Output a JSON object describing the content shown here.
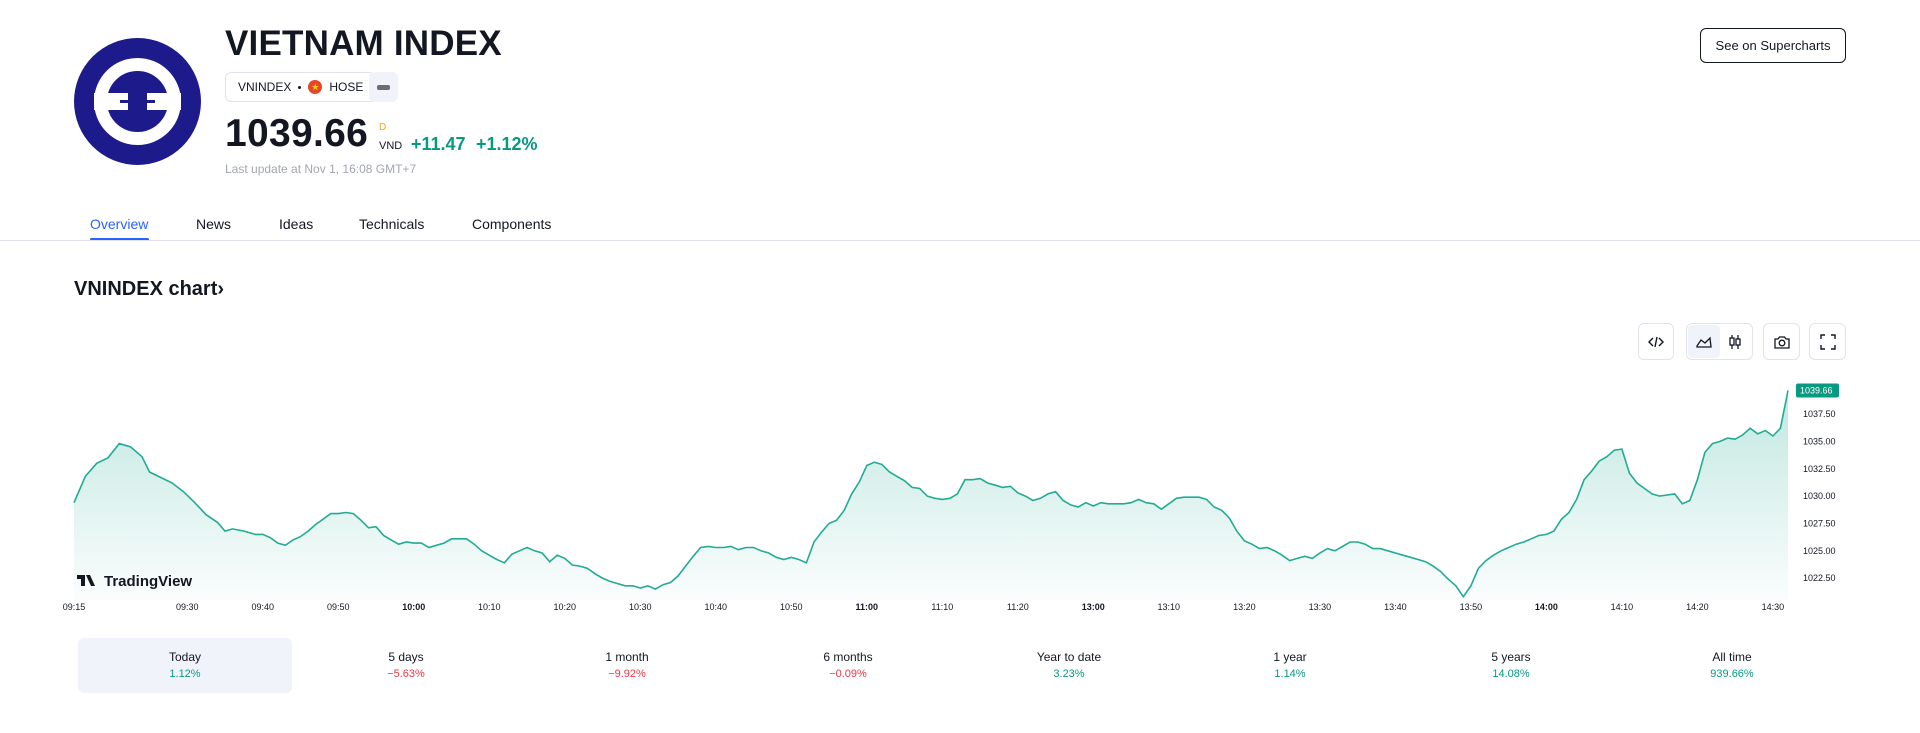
{
  "header": {
    "title": "VIETNAM INDEX",
    "symbol": "VNINDEX",
    "exchange": "HOSE",
    "price": "1039.66",
    "price_superscript": "D",
    "currency": "VND",
    "change": "+11.47",
    "change_percent": "+1.12%",
    "last_update": "Last update at Nov 1, 16:08 GMT+7",
    "supercharts_button": "See on Supercharts"
  },
  "tabs": [
    {
      "label": "Overview",
      "active": true
    },
    {
      "label": "News"
    },
    {
      "label": "Ideas"
    },
    {
      "label": "Technicals"
    },
    {
      "label": "Components"
    }
  ],
  "chart_section": {
    "title": "VNINDEX chart",
    "title_chevron": "›",
    "watermark": "TradingView",
    "toolbar_icons": [
      "embed-code-icon",
      "area-chart-icon",
      "candlestick-icon",
      "camera-icon",
      "fullscreen-icon"
    ]
  },
  "chart_data": {
    "type": "area",
    "color": "#22ab94",
    "last_value": 1039.66,
    "last_value_label": "1039.66",
    "ylim": [
      1020.5,
      1040.8
    ],
    "y_ticks": [
      "1037.50",
      "1035.00",
      "1032.50",
      "1030.00",
      "1027.50",
      "1025.00",
      "1022.50"
    ],
    "y_tick_values": [
      1037.5,
      1035.0,
      1032.5,
      1030.0,
      1027.5,
      1025.0,
      1022.5
    ],
    "x_ticks": [
      {
        "label": "09:15",
        "t": 555,
        "bold": false
      },
      {
        "label": "09:30",
        "t": 570,
        "bold": false
      },
      {
        "label": "09:40",
        "t": 580,
        "bold": false
      },
      {
        "label": "09:50",
        "t": 590,
        "bold": false
      },
      {
        "label": "10:00",
        "t": 600,
        "bold": true
      },
      {
        "label": "10:10",
        "t": 610,
        "bold": false
      },
      {
        "label": "10:20",
        "t": 620,
        "bold": false
      },
      {
        "label": "10:30",
        "t": 630,
        "bold": false
      },
      {
        "label": "10:40",
        "t": 640,
        "bold": false
      },
      {
        "label": "10:50",
        "t": 650,
        "bold": false
      },
      {
        "label": "11:00",
        "t": 660,
        "bold": true
      },
      {
        "label": "11:10",
        "t": 670,
        "bold": false
      },
      {
        "label": "11:20",
        "t": 680,
        "bold": false
      },
      {
        "label": "13:00",
        "t": 690,
        "bold": true
      },
      {
        "label": "13:10",
        "t": 700,
        "bold": false
      },
      {
        "label": "13:20",
        "t": 710,
        "bold": false
      },
      {
        "label": "13:30",
        "t": 720,
        "bold": false
      },
      {
        "label": "13:40",
        "t": 730,
        "bold": false
      },
      {
        "label": "13:50",
        "t": 740,
        "bold": false
      },
      {
        "label": "14:00",
        "t": 750,
        "bold": true
      },
      {
        "label": "14:10",
        "t": 760,
        "bold": false
      },
      {
        "label": "14:20",
        "t": 770,
        "bold": false
      },
      {
        "label": "14:30",
        "t": 780,
        "bold": false
      }
    ],
    "series": [
      {
        "t": 555,
        "v": 1029.4
      },
      {
        "t": 556.5,
        "v": 1031.8
      },
      {
        "t": 558,
        "v": 1033.0
      },
      {
        "t": 559.5,
        "v": 1033.5
      },
      {
        "t": 561,
        "v": 1034.8
      },
      {
        "t": 562.5,
        "v": 1034.5
      },
      {
        "t": 564,
        "v": 1033.6
      },
      {
        "t": 565,
        "v": 1032.2
      },
      {
        "t": 566.5,
        "v": 1031.7
      },
      {
        "t": 568,
        "v": 1031.2
      },
      {
        "t": 569.5,
        "v": 1030.4
      },
      {
        "t": 571,
        "v": 1029.4
      },
      {
        "t": 572.5,
        "v": 1028.3
      },
      {
        "t": 574,
        "v": 1027.6
      },
      {
        "t": 575,
        "v": 1026.8
      },
      {
        "t": 576,
        "v": 1027.0
      },
      {
        "t": 577.5,
        "v": 1026.8
      },
      {
        "t": 579,
        "v": 1026.5
      },
      {
        "t": 580,
        "v": 1026.5
      },
      {
        "t": 581,
        "v": 1026.2
      },
      {
        "t": 582,
        "v": 1025.7
      },
      {
        "t": 583,
        "v": 1025.5
      },
      {
        "t": 584,
        "v": 1026.0
      },
      {
        "t": 585,
        "v": 1026.3
      },
      {
        "t": 586,
        "v": 1026.8
      },
      {
        "t": 587,
        "v": 1027.4
      },
      {
        "t": 588,
        "v": 1027.9
      },
      {
        "t": 589,
        "v": 1028.4
      },
      {
        "t": 590,
        "v": 1028.4
      },
      {
        "t": 591,
        "v": 1028.5
      },
      {
        "t": 592,
        "v": 1028.4
      },
      {
        "t": 593,
        "v": 1027.8
      },
      {
        "t": 594,
        "v": 1027.1
      },
      {
        "t": 595,
        "v": 1027.2
      },
      {
        "t": 596,
        "v": 1026.4
      },
      {
        "t": 597,
        "v": 1026.0
      },
      {
        "t": 598,
        "v": 1025.6
      },
      {
        "t": 599,
        "v": 1025.8
      },
      {
        "t": 600,
        "v": 1025.7
      },
      {
        "t": 601,
        "v": 1025.7
      },
      {
        "t": 602,
        "v": 1025.3
      },
      {
        "t": 603,
        "v": 1025.5
      },
      {
        "t": 604,
        "v": 1025.7
      },
      {
        "t": 605,
        "v": 1026.1
      },
      {
        "t": 606,
        "v": 1026.1
      },
      {
        "t": 607,
        "v": 1026.1
      },
      {
        "t": 608,
        "v": 1025.6
      },
      {
        "t": 609,
        "v": 1025.0
      },
      {
        "t": 610,
        "v": 1024.6
      },
      {
        "t": 611,
        "v": 1024.2
      },
      {
        "t": 612,
        "v": 1023.9
      },
      {
        "t": 613,
        "v": 1024.7
      },
      {
        "t": 614,
        "v": 1025.0
      },
      {
        "t": 615,
        "v": 1025.3
      },
      {
        "t": 616,
        "v": 1025.0
      },
      {
        "t": 617,
        "v": 1024.8
      },
      {
        "t": 618,
        "v": 1024.0
      },
      {
        "t": 619,
        "v": 1024.6
      },
      {
        "t": 620,
        "v": 1024.3
      },
      {
        "t": 621,
        "v": 1023.7
      },
      {
        "t": 622,
        "v": 1023.6
      },
      {
        "t": 623,
        "v": 1023.4
      },
      {
        "t": 624,
        "v": 1022.9
      },
      {
        "t": 625,
        "v": 1022.5
      },
      {
        "t": 626,
        "v": 1022.2
      },
      {
        "t": 627,
        "v": 1022.0
      },
      {
        "t": 628,
        "v": 1021.8
      },
      {
        "t": 629,
        "v": 1021.8
      },
      {
        "t": 630,
        "v": 1021.6
      },
      {
        "t": 631,
        "v": 1021.8
      },
      {
        "t": 632,
        "v": 1021.5
      },
      {
        "t": 633,
        "v": 1021.9
      },
      {
        "t": 634,
        "v": 1022.1
      },
      {
        "t": 635,
        "v": 1022.7
      },
      {
        "t": 636,
        "v": 1023.6
      },
      {
        "t": 637,
        "v": 1024.5
      },
      {
        "t": 638,
        "v": 1025.3
      },
      {
        "t": 639,
        "v": 1025.4
      },
      {
        "t": 640,
        "v": 1025.3
      },
      {
        "t": 641,
        "v": 1025.3
      },
      {
        "t": 642,
        "v": 1025.4
      },
      {
        "t": 643,
        "v": 1025.1
      },
      {
        "t": 644,
        "v": 1025.3
      },
      {
        "t": 645,
        "v": 1025.3
      },
      {
        "t": 646,
        "v": 1025.0
      },
      {
        "t": 647,
        "v": 1024.8
      },
      {
        "t": 648,
        "v": 1024.4
      },
      {
        "t": 649,
        "v": 1024.2
      },
      {
        "t": 650,
        "v": 1024.4
      },
      {
        "t": 651,
        "v": 1024.2
      },
      {
        "t": 652,
        "v": 1023.9
      },
      {
        "t": 653,
        "v": 1025.8
      },
      {
        "t": 654,
        "v": 1026.7
      },
      {
        "t": 655,
        "v": 1027.5
      },
      {
        "t": 656,
        "v": 1027.8
      },
      {
        "t": 657,
        "v": 1028.7
      },
      {
        "t": 658,
        "v": 1030.2
      },
      {
        "t": 659,
        "v": 1031.3
      },
      {
        "t": 660,
        "v": 1032.8
      },
      {
        "t": 661,
        "v": 1033.1
      },
      {
        "t": 662,
        "v": 1032.9
      },
      {
        "t": 663,
        "v": 1032.2
      },
      {
        "t": 664,
        "v": 1031.8
      },
      {
        "t": 665,
        "v": 1031.4
      },
      {
        "t": 666,
        "v": 1030.8
      },
      {
        "t": 667,
        "v": 1030.7
      },
      {
        "t": 668,
        "v": 1030.0
      },
      {
        "t": 669,
        "v": 1029.8
      },
      {
        "t": 670,
        "v": 1029.7
      },
      {
        "t": 671,
        "v": 1029.8
      },
      {
        "t": 672,
        "v": 1030.2
      },
      {
        "t": 673,
        "v": 1031.5
      },
      {
        "t": 674,
        "v": 1031.5
      },
      {
        "t": 675,
        "v": 1031.6
      },
      {
        "t": 676,
        "v": 1031.2
      },
      {
        "t": 677,
        "v": 1031.0
      },
      {
        "t": 678,
        "v": 1030.8
      },
      {
        "t": 679,
        "v": 1030.9
      },
      {
        "t": 680,
        "v": 1030.3
      },
      {
        "t": 681,
        "v": 1030.0
      },
      {
        "t": 682,
        "v": 1029.6
      },
      {
        "t": 683,
        "v": 1029.8
      },
      {
        "t": 684,
        "v": 1030.2
      },
      {
        "t": 685,
        "v": 1030.4
      },
      {
        "t": 686,
        "v": 1029.6
      },
      {
        "t": 687,
        "v": 1029.2
      },
      {
        "t": 688,
        "v": 1029.0
      },
      {
        "t": 689,
        "v": 1029.4
      },
      {
        "t": 690,
        "v": 1029.1
      },
      {
        "t": 691,
        "v": 1029.4
      },
      {
        "t": 692,
        "v": 1029.3
      },
      {
        "t": 693,
        "v": 1029.3
      },
      {
        "t": 694,
        "v": 1029.3
      },
      {
        "t": 695,
        "v": 1029.4
      },
      {
        "t": 696,
        "v": 1029.7
      },
      {
        "t": 697,
        "v": 1029.4
      },
      {
        "t": 698,
        "v": 1029.3
      },
      {
        "t": 699,
        "v": 1028.8
      },
      {
        "t": 700,
        "v": 1029.3
      },
      {
        "t": 701,
        "v": 1029.8
      },
      {
        "t": 702,
        "v": 1029.9
      },
      {
        "t": 703,
        "v": 1029.9
      },
      {
        "t": 704,
        "v": 1029.9
      },
      {
        "t": 705,
        "v": 1029.7
      },
      {
        "t": 706,
        "v": 1029.0
      },
      {
        "t": 707,
        "v": 1028.7
      },
      {
        "t": 708,
        "v": 1028.0
      },
      {
        "t": 709,
        "v": 1026.8
      },
      {
        "t": 710,
        "v": 1025.9
      },
      {
        "t": 711,
        "v": 1025.6
      },
      {
        "t": 712,
        "v": 1025.2
      },
      {
        "t": 713,
        "v": 1025.3
      },
      {
        "t": 714,
        "v": 1025.0
      },
      {
        "t": 715,
        "v": 1024.6
      },
      {
        "t": 716,
        "v": 1024.1
      },
      {
        "t": 717,
        "v": 1024.3
      },
      {
        "t": 718,
        "v": 1024.5
      },
      {
        "t": 719,
        "v": 1024.3
      },
      {
        "t": 720,
        "v": 1024.8
      },
      {
        "t": 721,
        "v": 1025.2
      },
      {
        "t": 722,
        "v": 1025.0
      },
      {
        "t": 723,
        "v": 1025.4
      },
      {
        "t": 724,
        "v": 1025.8
      },
      {
        "t": 725,
        "v": 1025.8
      },
      {
        "t": 726,
        "v": 1025.6
      },
      {
        "t": 727,
        "v": 1025.2
      },
      {
        "t": 728,
        "v": 1025.2
      },
      {
        "t": 729,
        "v": 1025.0
      },
      {
        "t": 730,
        "v": 1024.8
      },
      {
        "t": 731,
        "v": 1024.6
      },
      {
        "t": 732,
        "v": 1024.4
      },
      {
        "t": 733,
        "v": 1024.2
      },
      {
        "t": 734,
        "v": 1024.0
      },
      {
        "t": 735,
        "v": 1023.6
      },
      {
        "t": 736,
        "v": 1023.1
      },
      {
        "t": 737,
        "v": 1022.4
      },
      {
        "t": 738,
        "v": 1021.8
      },
      {
        "t": 739,
        "v": 1020.8
      },
      {
        "t": 740,
        "v": 1021.8
      },
      {
        "t": 741,
        "v": 1023.4
      },
      {
        "t": 742,
        "v": 1024.1
      },
      {
        "t": 743,
        "v": 1024.6
      },
      {
        "t": 744,
        "v": 1025.0
      },
      {
        "t": 745,
        "v": 1025.3
      },
      {
        "t": 746,
        "v": 1025.6
      },
      {
        "t": 747,
        "v": 1025.8
      },
      {
        "t": 748,
        "v": 1026.1
      },
      {
        "t": 749,
        "v": 1026.4
      },
      {
        "t": 750,
        "v": 1026.5
      },
      {
        "t": 751,
        "v": 1026.8
      },
      {
        "t": 752,
        "v": 1027.9
      },
      {
        "t": 753,
        "v": 1028.5
      },
      {
        "t": 754,
        "v": 1029.7
      },
      {
        "t": 755,
        "v": 1031.5
      },
      {
        "t": 756,
        "v": 1032.3
      },
      {
        "t": 757,
        "v": 1033.2
      },
      {
        "t": 758,
        "v": 1033.6
      },
      {
        "t": 759,
        "v": 1034.2
      },
      {
        "t": 760,
        "v": 1034.3
      },
      {
        "t": 761,
        "v": 1032.1
      },
      {
        "t": 762,
        "v": 1031.2
      },
      {
        "t": 763,
        "v": 1030.7
      },
      {
        "t": 764,
        "v": 1030.2
      },
      {
        "t": 765,
        "v": 1030.0
      },
      {
        "t": 766,
        "v": 1030.1
      },
      {
        "t": 767,
        "v": 1030.2
      },
      {
        "t": 768,
        "v": 1029.3
      },
      {
        "t": 769,
        "v": 1029.6
      },
      {
        "t": 770,
        "v": 1031.5
      },
      {
        "t": 771,
        "v": 1034.0
      },
      {
        "t": 772,
        "v": 1034.8
      },
      {
        "t": 773,
        "v": 1035.0
      },
      {
        "t": 774,
        "v": 1035.3
      },
      {
        "t": 775,
        "v": 1035.2
      },
      {
        "t": 776,
        "v": 1035.6
      },
      {
        "t": 777,
        "v": 1036.2
      },
      {
        "t": 778,
        "v": 1035.7
      },
      {
        "t": 779,
        "v": 1036.0
      },
      {
        "t": 780,
        "v": 1035.5
      },
      {
        "t": 781,
        "v": 1036.2
      },
      {
        "t": 782,
        "v": 1039.66
      }
    ]
  },
  "periods": [
    {
      "label": "Today",
      "value": "1.12%",
      "trend": "up",
      "active": true
    },
    {
      "label": "5 days",
      "value": "−5.63%",
      "trend": "down"
    },
    {
      "label": "1 month",
      "value": "−9.92%",
      "trend": "down"
    },
    {
      "label": "6 months",
      "value": "−0.09%",
      "trend": "down"
    },
    {
      "label": "Year to date",
      "value": "3.23%",
      "trend": "up"
    },
    {
      "label": "1 year",
      "value": "1.14%",
      "trend": "up"
    },
    {
      "label": "5 years",
      "value": "14.08%",
      "trend": "up"
    },
    {
      "label": "All time",
      "value": "939.66%",
      "trend": "up"
    }
  ]
}
